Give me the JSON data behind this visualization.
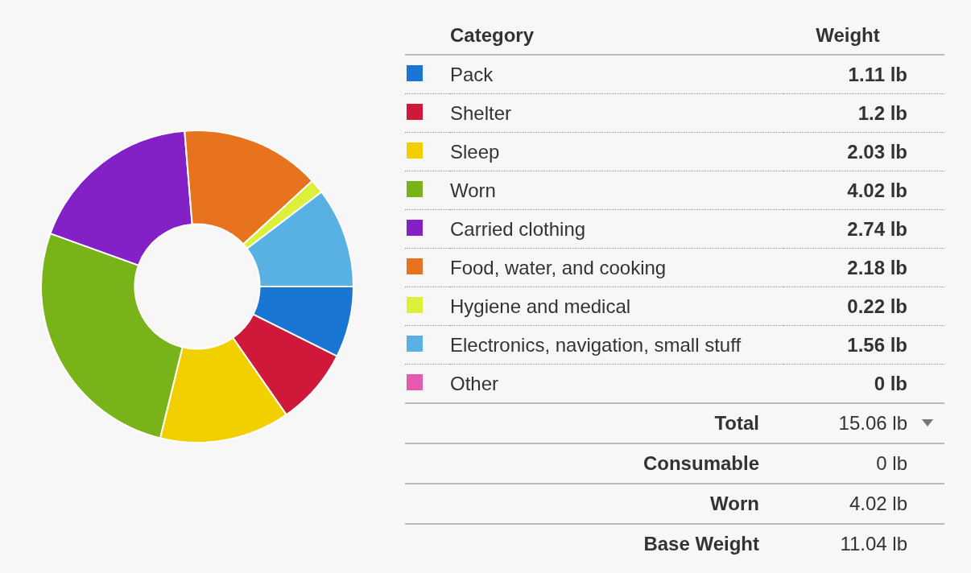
{
  "chart_data": {
    "type": "donut",
    "categories": [
      "Pack",
      "Shelter",
      "Sleep",
      "Worn",
      "Carried clothing",
      "Food, water, and cooking",
      "Hygiene and medical",
      "Electronics, navigation, small stuff",
      "Other"
    ],
    "values": [
      1.11,
      1.2,
      2.03,
      4.02,
      2.74,
      2.18,
      0.22,
      1.56,
      0
    ],
    "colors": [
      "#1976d2",
      "#d0193a",
      "#f2d000",
      "#78b31a",
      "#8321c6",
      "#e8731e",
      "#dcf03a",
      "#58b0e3",
      "#e35aaf"
    ],
    "value_labels": [
      "1.11 lb",
      "1.2 lb",
      "2.03 lb",
      "4.02 lb",
      "2.74 lb",
      "2.18 lb",
      "0.22 lb",
      "1.56 lb",
      "0 lb"
    ],
    "legend": "right",
    "annotations": [
      "Category",
      "Weight",
      "Total",
      "15.06 lb",
      "Consumable",
      "0 lb",
      "Worn",
      "4.02 lb",
      "Base Weight",
      "11.04 lb"
    ]
  }
}
